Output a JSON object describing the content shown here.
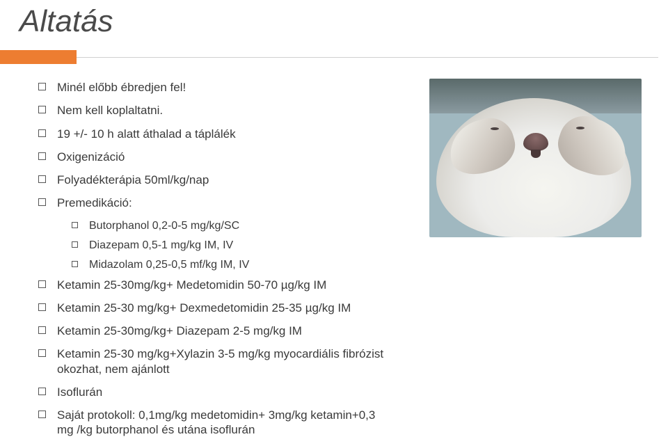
{
  "title": "Altatás",
  "accent_color": "#ed7d31",
  "items": [
    {
      "text": "Minél előbb ébredjen fel!"
    },
    {
      "text": "Nem kell koplaltatni."
    },
    {
      "text": "19 +/- 10 h alatt áthalad a táplálék"
    },
    {
      "text": "Oxigenizáció"
    },
    {
      "text": "Folyadékterápia 50ml/kg/nap"
    },
    {
      "text": "Premedikáció:"
    }
  ],
  "subitems": [
    {
      "text": "Butorphanol 0,2-0-5 mg/kg/SC"
    },
    {
      "text": "Diazepam 0,5-1 mg/kg IM, IV"
    },
    {
      "text": "Midazolam 0,25-0,5 mf/kg IM, IV"
    }
  ],
  "items2": [
    {
      "text": "Ketamin 25-30mg/kg+ Medetomidin 50-70 µg/kg IM"
    },
    {
      "text": "Ketamin 25-30 mg/kg+ Dexmedetomidin 25-35 µg/kg IM"
    },
    {
      "text": "Ketamin 25-30mg/kg+ Diazepam 2-5 mg/kg IM"
    },
    {
      "text": "Ketamin 25-30 mg/kg+Xylazin 3-5 mg/kg myocardiális fibrózist okozhat, nem ajánlott"
    },
    {
      "text": "Isoflurán"
    },
    {
      "text": "Saját protokoll: 0,1mg/kg medetomidin+ 3mg/kg ketamin+0,3 mg /kg butorphanol és utána isoflurán"
    }
  ],
  "image_alt": "sedated-rabbit-photo"
}
